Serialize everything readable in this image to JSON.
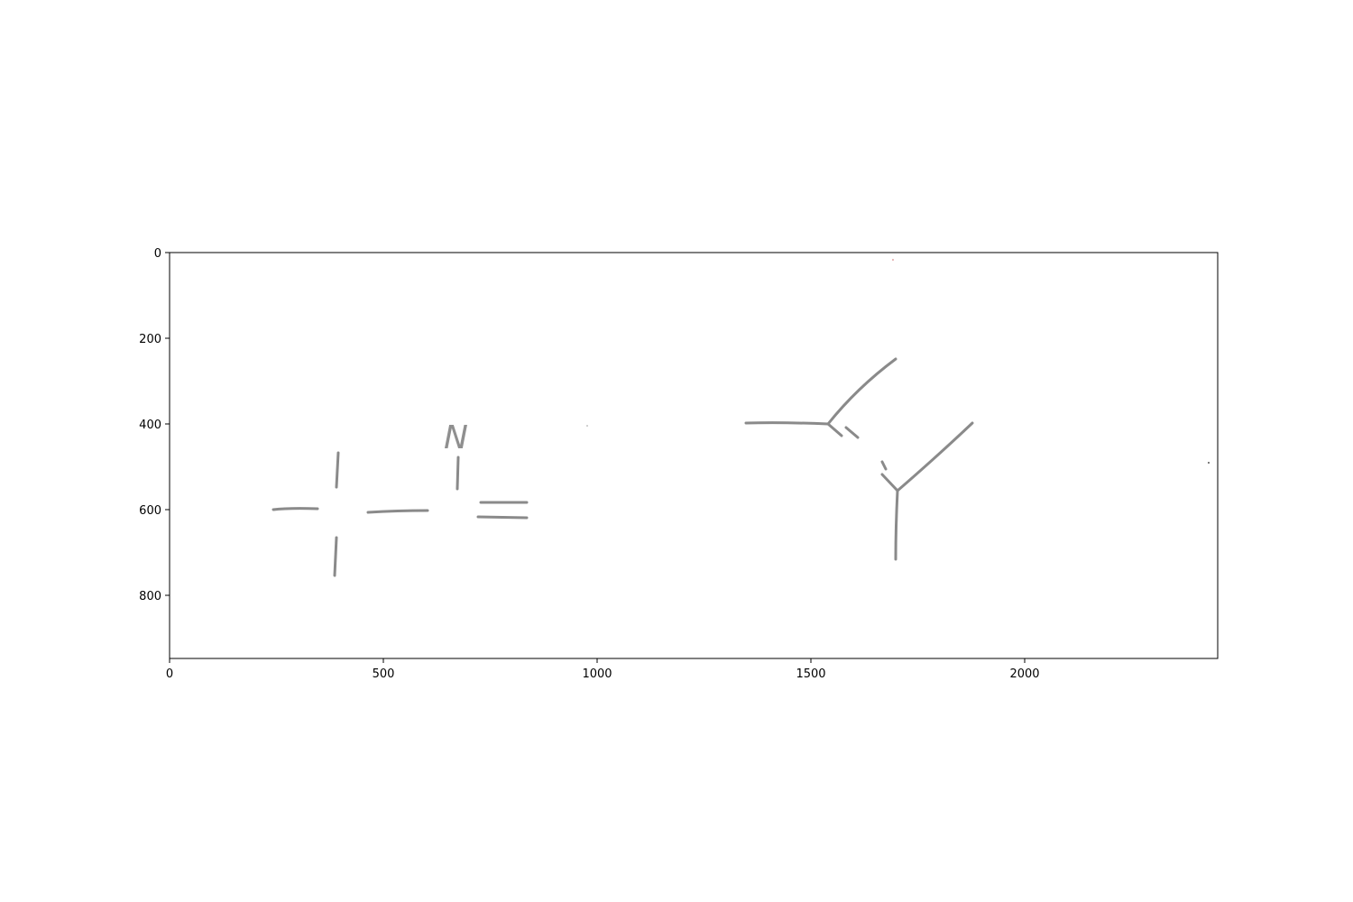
{
  "figure": {
    "colors": {
      "background": "#ffffff",
      "frame": "#000000",
      "pencil": "#8a8a8a"
    },
    "x_axis": {
      "range": [
        0,
        2450
      ],
      "tick_values": [
        0,
        500,
        1000,
        1500,
        2000
      ],
      "tick_labels": [
        "0",
        "500",
        "1000",
        "1500",
        "2000"
      ]
    },
    "y_axis": {
      "range": [
        0,
        950
      ],
      "inverted": true,
      "tick_values": [
        0,
        200,
        400,
        600,
        800
      ],
      "tick_labels": [
        "0",
        "200",
        "400",
        "600",
        "800"
      ]
    },
    "image_content": {
      "description_kind": "hand-drawn pencil chemical structure sketch",
      "letters": [
        "N"
      ]
    }
  }
}
